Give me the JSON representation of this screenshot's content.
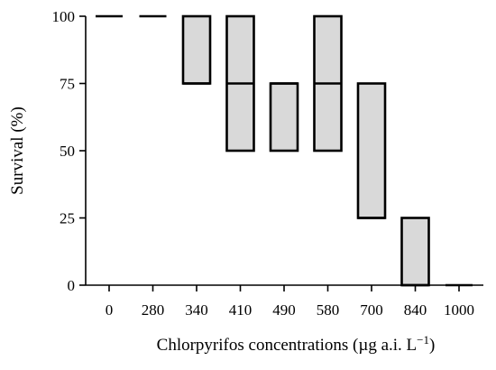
{
  "chart_data": {
    "type": "box",
    "xlabel_main": "Chlorpyrifos concentrations (µg a.i. L",
    "xlabel_sup": "−1",
    "xlabel_tail": ")",
    "ylabel": "Survival (%)",
    "ylim": [
      0,
      100
    ],
    "yticks": [
      "0",
      "25",
      "50",
      "75",
      "100"
    ],
    "categories": [
      "0",
      "280",
      "340",
      "410",
      "490",
      "580",
      "700",
      "840",
      "1000"
    ],
    "boxes": [
      {
        "category": "0",
        "q1": 100,
        "median": 100,
        "q3": 100
      },
      {
        "category": "280",
        "q1": 100,
        "median": 100,
        "q3": 100
      },
      {
        "category": "340",
        "q1": 75,
        "median": 75,
        "q3": 100
      },
      {
        "category": "410",
        "q1": 50,
        "median": 75,
        "q3": 100
      },
      {
        "category": "490",
        "q1": 50,
        "median": 75,
        "q3": 75
      },
      {
        "category": "580",
        "q1": 50,
        "median": 75,
        "q3": 100
      },
      {
        "category": "700",
        "q1": 25,
        "median": 25,
        "q3": 75
      },
      {
        "category": "840",
        "q1": 0,
        "median": 0,
        "q3": 25
      },
      {
        "category": "1000",
        "q1": 0,
        "median": 0,
        "q3": 0
      }
    ],
    "box_fill": "#d9d9d9",
    "stroke_color": "#000000",
    "grid": false,
    "legend": "none"
  }
}
